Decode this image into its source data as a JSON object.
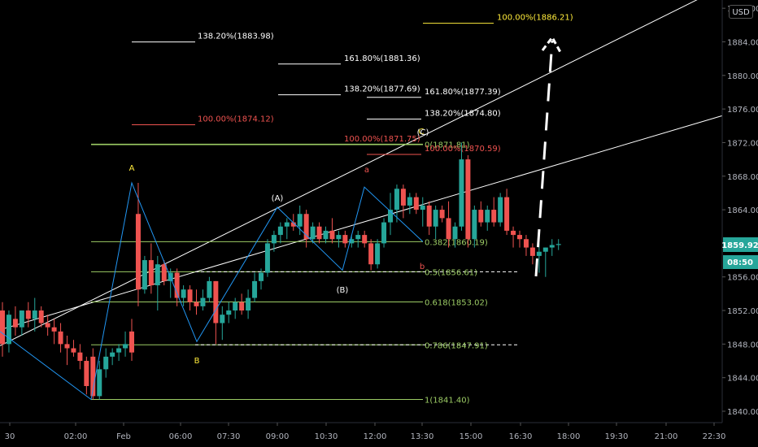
{
  "currency_button": "USD",
  "colors": {
    "background": "#000000",
    "bull": "#26a69a",
    "bear": "#ef5350",
    "pattern_line": "#2196f3",
    "fib_green": "#9ccc65",
    "label_yellow": "#ffeb3b",
    "label_red": "#ef5350",
    "axis_text": "#b2b5be"
  },
  "chart_data": {
    "type": "candlestick",
    "y_axis": {
      "range": [
        1838,
        1891
      ],
      "ticks": [
        "1840.00",
        "1844.00",
        "1848.00",
        "1852.00",
        "1856.00",
        "1860.00",
        "1864.00",
        "1868.00",
        "1872.00",
        "1876.00",
        "1880.00",
        "1884.00",
        "1888.00"
      ]
    },
    "x_axis": {
      "ticks": [
        "30",
        "02:00",
        "Feb",
        "06:00",
        "07:30",
        "09:00",
        "10:30",
        "12:00",
        "13:30",
        "15:00",
        "16:30",
        "18:00",
        "19:30",
        "21:00",
        "22:30"
      ]
    },
    "candles": [
      {
        "o": 1852.0,
        "h": 1853.0,
        "l": 1846.5,
        "c": 1848.0
      },
      {
        "o": 1848.0,
        "h": 1852.0,
        "l": 1847.0,
        "c": 1851.5
      },
      {
        "o": 1851.0,
        "h": 1852.5,
        "l": 1849.0,
        "c": 1850.0
      },
      {
        "o": 1850.0,
        "h": 1852.0,
        "l": 1849.0,
        "c": 1852.0
      },
      {
        "o": 1852.0,
        "h": 1853.0,
        "l": 1850.0,
        "c": 1851.0
      },
      {
        "o": 1851.0,
        "h": 1853.5,
        "l": 1849.5,
        "c": 1852.0
      },
      {
        "o": 1852.0,
        "h": 1852.5,
        "l": 1850.0,
        "c": 1850.5
      },
      {
        "o": 1850.5,
        "h": 1851.5,
        "l": 1849.0,
        "c": 1850.0
      },
      {
        "o": 1850.0,
        "h": 1851.0,
        "l": 1848.0,
        "c": 1849.5
      },
      {
        "o": 1849.5,
        "h": 1850.5,
        "l": 1847.0,
        "c": 1848.0
      },
      {
        "o": 1848.0,
        "h": 1849.0,
        "l": 1845.5,
        "c": 1847.5
      },
      {
        "o": 1847.5,
        "h": 1848.5,
        "l": 1846.5,
        "c": 1847.0
      },
      {
        "o": 1847.0,
        "h": 1848.0,
        "l": 1845.0,
        "c": 1846.0
      },
      {
        "o": 1846.0,
        "h": 1846.5,
        "l": 1842.0,
        "c": 1843.0
      },
      {
        "o": 1846.5,
        "h": 1847.5,
        "l": 1841.4,
        "c": 1841.8
      },
      {
        "o": 1841.8,
        "h": 1846.0,
        "l": 1841.4,
        "c": 1845.0
      },
      {
        "o": 1845.0,
        "h": 1847.5,
        "l": 1844.0,
        "c": 1846.5
      },
      {
        "o": 1846.5,
        "h": 1847.5,
        "l": 1845.5,
        "c": 1847.0
      },
      {
        "o": 1847.0,
        "h": 1848.0,
        "l": 1846.0,
        "c": 1847.5
      },
      {
        "o": 1847.5,
        "h": 1849.5,
        "l": 1846.5,
        "c": 1848.0
      },
      {
        "o": 1849.5,
        "h": 1851.0,
        "l": 1846.0,
        "c": 1847.0
      },
      {
        "o": 1863.5,
        "h": 1867.2,
        "l": 1852.5,
        "c": 1854.5
      },
      {
        "o": 1854.5,
        "h": 1858.5,
        "l": 1854.0,
        "c": 1858.0
      },
      {
        "o": 1858.0,
        "h": 1860.0,
        "l": 1854.0,
        "c": 1855.0
      },
      {
        "o": 1855.0,
        "h": 1858.5,
        "l": 1852.0,
        "c": 1857.5
      },
      {
        "o": 1857.5,
        "h": 1858.0,
        "l": 1855.0,
        "c": 1855.5
      },
      {
        "o": 1855.5,
        "h": 1857.0,
        "l": 1853.5,
        "c": 1856.5
      },
      {
        "o": 1856.5,
        "h": 1857.0,
        "l": 1852.5,
        "c": 1853.5
      },
      {
        "o": 1853.5,
        "h": 1855.0,
        "l": 1852.5,
        "c": 1854.5
      },
      {
        "o": 1854.5,
        "h": 1855.0,
        "l": 1852.0,
        "c": 1853.0
      },
      {
        "o": 1853.0,
        "h": 1854.5,
        "l": 1851.5,
        "c": 1852.5
      },
      {
        "o": 1852.5,
        "h": 1854.5,
        "l": 1852.0,
        "c": 1853.5
      },
      {
        "o": 1853.5,
        "h": 1856.0,
        "l": 1853.0,
        "c": 1855.5
      },
      {
        "o": 1855.5,
        "h": 1855.5,
        "l": 1848.0,
        "c": 1850.5
      },
      {
        "o": 1850.5,
        "h": 1852.5,
        "l": 1848.5,
        "c": 1851.5
      },
      {
        "o": 1851.5,
        "h": 1853.0,
        "l": 1850.5,
        "c": 1852.0
      },
      {
        "o": 1852.0,
        "h": 1853.5,
        "l": 1851.0,
        "c": 1853.0
      },
      {
        "o": 1853.0,
        "h": 1854.0,
        "l": 1851.5,
        "c": 1852.0
      },
      {
        "o": 1852.0,
        "h": 1854.5,
        "l": 1851.0,
        "c": 1853.5
      },
      {
        "o": 1853.5,
        "h": 1856.5,
        "l": 1853.0,
        "c": 1855.5
      },
      {
        "o": 1855.5,
        "h": 1857.0,
        "l": 1854.5,
        "c": 1856.5
      },
      {
        "o": 1856.5,
        "h": 1860.5,
        "l": 1856.0,
        "c": 1860.0
      },
      {
        "o": 1860.0,
        "h": 1861.5,
        "l": 1859.0,
        "c": 1861.0
      },
      {
        "o": 1861.0,
        "h": 1862.5,
        "l": 1860.0,
        "c": 1862.0
      },
      {
        "o": 1862.0,
        "h": 1863.0,
        "l": 1860.5,
        "c": 1862.5
      },
      {
        "o": 1862.5,
        "h": 1863.5,
        "l": 1861.5,
        "c": 1862.0
      },
      {
        "o": 1862.0,
        "h": 1864.5,
        "l": 1861.0,
        "c": 1863.5
      },
      {
        "o": 1863.5,
        "h": 1864.0,
        "l": 1859.5,
        "c": 1860.5
      },
      {
        "o": 1860.5,
        "h": 1862.5,
        "l": 1860.0,
        "c": 1862.0
      },
      {
        "o": 1862.0,
        "h": 1862.5,
        "l": 1860.0,
        "c": 1860.5
      },
      {
        "o": 1860.5,
        "h": 1862.0,
        "l": 1860.0,
        "c": 1861.5
      },
      {
        "o": 1861.5,
        "h": 1863.0,
        "l": 1860.0,
        "c": 1860.5
      },
      {
        "o": 1860.5,
        "h": 1861.5,
        "l": 1859.5,
        "c": 1861.0
      },
      {
        "o": 1861.0,
        "h": 1861.5,
        "l": 1859.5,
        "c": 1860.0
      },
      {
        "o": 1860.0,
        "h": 1861.0,
        "l": 1859.5,
        "c": 1860.5
      },
      {
        "o": 1860.5,
        "h": 1861.5,
        "l": 1859.5,
        "c": 1861.0
      },
      {
        "o": 1861.0,
        "h": 1861.5,
        "l": 1859.5,
        "c": 1860.0
      },
      {
        "o": 1860.0,
        "h": 1860.5,
        "l": 1856.8,
        "c": 1857.5
      },
      {
        "o": 1857.5,
        "h": 1860.5,
        "l": 1857.0,
        "c": 1860.0
      },
      {
        "o": 1860.0,
        "h": 1863.0,
        "l": 1859.5,
        "c": 1862.5
      },
      {
        "o": 1862.5,
        "h": 1866.0,
        "l": 1861.0,
        "c": 1864.0
      },
      {
        "o": 1864.0,
        "h": 1867.0,
        "l": 1862.5,
        "c": 1866.5
      },
      {
        "o": 1866.5,
        "h": 1867.0,
        "l": 1863.0,
        "c": 1864.5
      },
      {
        "o": 1864.5,
        "h": 1866.0,
        "l": 1863.5,
        "c": 1865.5
      },
      {
        "o": 1865.5,
        "h": 1866.0,
        "l": 1863.5,
        "c": 1864.0
      },
      {
        "o": 1864.0,
        "h": 1865.5,
        "l": 1862.0,
        "c": 1864.5
      },
      {
        "o": 1864.5,
        "h": 1865.0,
        "l": 1861.0,
        "c": 1862.0
      },
      {
        "o": 1862.0,
        "h": 1864.5,
        "l": 1860.5,
        "c": 1864.0
      },
      {
        "o": 1864.0,
        "h": 1864.5,
        "l": 1862.5,
        "c": 1863.0
      },
      {
        "o": 1863.0,
        "h": 1865.0,
        "l": 1859.5,
        "c": 1860.5
      },
      {
        "o": 1860.5,
        "h": 1862.5,
        "l": 1859.5,
        "c": 1862.0
      },
      {
        "o": 1862.0,
        "h": 1872.0,
        "l": 1861.5,
        "c": 1870.0
      },
      {
        "o": 1870.0,
        "h": 1870.5,
        "l": 1859.5,
        "c": 1860.5
      },
      {
        "o": 1860.5,
        "h": 1864.5,
        "l": 1859.5,
        "c": 1864.0
      },
      {
        "o": 1864.0,
        "h": 1865.0,
        "l": 1862.0,
        "c": 1862.5
      },
      {
        "o": 1862.5,
        "h": 1864.5,
        "l": 1861.5,
        "c": 1864.0
      },
      {
        "o": 1864.0,
        "h": 1865.5,
        "l": 1862.0,
        "c": 1862.5
      },
      {
        "o": 1862.5,
        "h": 1866.0,
        "l": 1862.0,
        "c": 1865.5
      },
      {
        "o": 1865.5,
        "h": 1866.5,
        "l": 1861.0,
        "c": 1861.5
      },
      {
        "o": 1861.5,
        "h": 1862.0,
        "l": 1859.5,
        "c": 1861.0
      },
      {
        "o": 1861.0,
        "h": 1861.5,
        "l": 1859.5,
        "c": 1860.5
      },
      {
        "o": 1860.5,
        "h": 1861.0,
        "l": 1858.5,
        "c": 1859.5
      },
      {
        "o": 1859.5,
        "h": 1860.0,
        "l": 1857.5,
        "c": 1858.5
      },
      {
        "o": 1858.5,
        "h": 1860.0,
        "l": 1856.5,
        "c": 1859.0
      },
      {
        "o": 1859.0,
        "h": 1859.5,
        "l": 1856.0,
        "c": 1859.5
      },
      {
        "o": 1859.5,
        "h": 1860.5,
        "l": 1858.5,
        "c": 1859.8
      },
      {
        "o": 1859.8,
        "h": 1860.5,
        "l": 1859.2,
        "c": 1859.92
      }
    ],
    "last_price": "1859.92",
    "countdown": "08:50",
    "wave_labels": {
      "A": "A",
      "B": "B",
      "C": "C",
      "wA": "(A)",
      "wB": "(B)",
      "wC": "(C)",
      "a": "a",
      "b": "b"
    },
    "fib_retracement": [
      {
        "label": "0(1871.81)",
        "value": 1871.81
      },
      {
        "label": "0.382(1860.19)",
        "value": 1860.19
      },
      {
        "label": "0.5(1856.61)",
        "value": 1856.61
      },
      {
        "label": "0.618(1853.02)",
        "value": 1853.02
      },
      {
        "label": "0.786(1847.91)",
        "value": 1847.91
      },
      {
        "label": "1(1841.40)",
        "value": 1841.4
      }
    ],
    "fib_extensions": [
      {
        "label": "100.00%(1886.21)",
        "value": 1886.21,
        "color": "yellow"
      },
      {
        "label": "138.20%(1883.98)",
        "value": 1883.98,
        "color": "white"
      },
      {
        "label": "161.80%(1881.36)",
        "value": 1881.36,
        "color": "white"
      },
      {
        "label": "138.20%(1877.69)",
        "value": 1877.69,
        "color": "white"
      },
      {
        "label": "161.80%(1877.39)",
        "value": 1877.39,
        "color": "white"
      },
      {
        "label": "138.20%(1874.80)",
        "value": 1874.8,
        "color": "white"
      },
      {
        "label": "100.00%(1874.12)",
        "value": 1874.12,
        "color": "red"
      },
      {
        "label": "100.00%(1871.75)",
        "value": 1871.75,
        "color": "red"
      },
      {
        "label": "100.00%(1870.59)",
        "value": 1870.59,
        "color": "red"
      }
    ]
  }
}
